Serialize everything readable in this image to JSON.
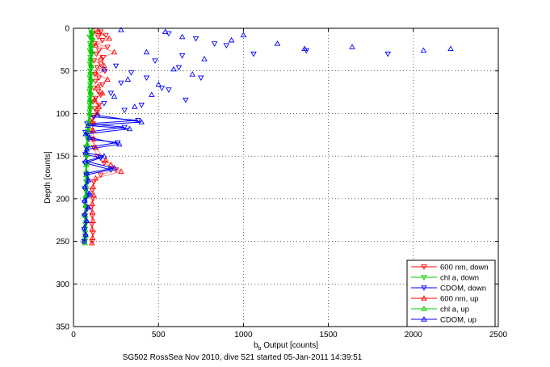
{
  "caption": "SG502 RossSea Nov 2010, dive 521 started 05-Jan-2011 14:39:51",
  "chart_data": {
    "type": "scatter",
    "xlabel": {
      "main": "b",
      "sub": "b",
      "rest": " Output [counts]"
    },
    "ylabel": "Depth [counts]",
    "xlim": [
      0,
      2500
    ],
    "ylim": [
      0,
      350
    ],
    "y_reversed": true,
    "grid": true,
    "x_ticks": [
      0,
      500,
      1000,
      1500,
      2000,
      2500
    ],
    "y_ticks": [
      0,
      50,
      100,
      150,
      200,
      250,
      300,
      350
    ],
    "legend_position": "bottom-right",
    "series": [
      {
        "name": "600 nm, down",
        "color": "#ff0000",
        "marker": "triangle-down",
        "points": [
          [
            130,
            2
          ],
          [
            160,
            4
          ],
          [
            115,
            6
          ],
          [
            190,
            8
          ],
          [
            145,
            10
          ],
          [
            170,
            14
          ],
          [
            125,
            18
          ],
          [
            200,
            22
          ],
          [
            150,
            26
          ],
          [
            135,
            30
          ],
          [
            175,
            34
          ],
          [
            120,
            38
          ],
          [
            160,
            42
          ],
          [
            140,
            46
          ],
          [
            185,
            50
          ],
          [
            125,
            54
          ],
          [
            150,
            58
          ],
          [
            130,
            62
          ],
          [
            170,
            66
          ],
          [
            120,
            70
          ],
          [
            145,
            74
          ],
          [
            160,
            78
          ],
          [
            130,
            82
          ],
          [
            115,
            86
          ],
          [
            150,
            90
          ],
          [
            125,
            94
          ],
          [
            140,
            98
          ],
          [
            120,
            102
          ],
          [
            110,
            106
          ],
          [
            115,
            112
          ],
          [
            105,
            120
          ],
          [
            112,
            130
          ],
          [
            120,
            140
          ],
          [
            140,
            150
          ],
          [
            180,
            158
          ],
          [
            250,
            166
          ],
          [
            160,
            172
          ],
          [
            120,
            180
          ],
          [
            110,
            190
          ],
          [
            115,
            200
          ],
          [
            105,
            210
          ],
          [
            110,
            220
          ],
          [
            108,
            230
          ],
          [
            115,
            240
          ],
          [
            110,
            250
          ]
        ]
      },
      {
        "name": "chl a, down",
        "color": "#00cc00",
        "marker": "triangle-down",
        "points": [
          [
            100,
            2
          ],
          [
            105,
            6
          ],
          [
            95,
            10
          ],
          [
            110,
            14
          ],
          [
            98,
            18
          ],
          [
            102,
            22
          ],
          [
            96,
            26
          ],
          [
            104,
            30
          ],
          [
            99,
            34
          ],
          [
            101,
            38
          ],
          [
            97,
            42
          ],
          [
            103,
            46
          ],
          [
            98,
            50
          ],
          [
            100,
            54
          ],
          [
            96,
            58
          ],
          [
            102,
            62
          ],
          [
            98,
            66
          ],
          [
            100,
            70
          ],
          [
            95,
            74
          ],
          [
            101,
            78
          ],
          [
            97,
            82
          ],
          [
            99,
            86
          ],
          [
            96,
            90
          ],
          [
            98,
            94
          ],
          [
            95,
            98
          ],
          [
            97,
            102
          ],
          [
            90,
            110
          ],
          [
            85,
            120
          ],
          [
            82,
            130
          ],
          [
            80,
            140
          ],
          [
            78,
            150
          ],
          [
            76,
            160
          ],
          [
            75,
            170
          ],
          [
            74,
            180
          ],
          [
            73,
            190
          ],
          [
            72,
            200
          ],
          [
            71,
            210
          ],
          [
            70,
            220
          ],
          [
            70,
            230
          ],
          [
            69,
            240
          ],
          [
            68,
            250
          ]
        ]
      },
      {
        "name": "CDOM, down",
        "color": "#0000ff",
        "marker": "triangle-down",
        "connected_from": 22,
        "points": [
          [
            560,
            6
          ],
          [
            720,
            12
          ],
          [
            830,
            18
          ],
          [
            1060,
            30
          ],
          [
            1370,
            26
          ],
          [
            1850,
            30
          ],
          [
            480,
            38
          ],
          [
            620,
            46
          ],
          [
            340,
            52
          ],
          [
            750,
            58
          ],
          [
            280,
            64
          ],
          [
            520,
            70
          ],
          [
            220,
            76
          ],
          [
            660,
            84
          ],
          [
            400,
            90
          ],
          [
            300,
            96
          ],
          [
            560,
            72
          ],
          [
            250,
            44
          ],
          [
            180,
            88
          ],
          [
            430,
            58
          ],
          [
            640,
            32
          ],
          [
            900,
            20
          ],
          [
            120,
            104
          ],
          [
            380,
            108
          ],
          [
            80,
            112
          ],
          [
            300,
            116
          ],
          [
            70,
            122
          ],
          [
            90,
            130
          ],
          [
            260,
            134
          ],
          [
            75,
            140
          ],
          [
            70,
            148
          ],
          [
            160,
            152
          ],
          [
            68,
            158
          ],
          [
            220,
            166
          ],
          [
            75,
            172
          ],
          [
            85,
            180
          ],
          [
            66,
            188
          ],
          [
            90,
            196
          ],
          [
            65,
            204
          ],
          [
            80,
            212
          ],
          [
            64,
            220
          ],
          [
            75,
            228
          ],
          [
            63,
            236
          ],
          [
            70,
            244
          ],
          [
            62,
            250
          ]
        ]
      },
      {
        "name": "600 nm, up",
        "color": "#ff0000",
        "marker": "triangle-up",
        "points": [
          [
            150,
            4
          ],
          [
            210,
            12
          ],
          [
            130,
            20
          ],
          [
            240,
            28
          ],
          [
            160,
            36
          ],
          [
            180,
            44
          ],
          [
            130,
            52
          ],
          [
            200,
            60
          ],
          [
            145,
            68
          ],
          [
            170,
            76
          ],
          [
            125,
            84
          ],
          [
            150,
            92
          ],
          [
            140,
            100
          ],
          [
            110,
            110
          ],
          [
            115,
            120
          ],
          [
            118,
            130
          ],
          [
            130,
            140
          ],
          [
            190,
            155
          ],
          [
            220,
            160
          ],
          [
            280,
            168
          ],
          [
            130,
            176
          ],
          [
            115,
            186
          ],
          [
            120,
            196
          ],
          [
            110,
            206
          ],
          [
            112,
            216
          ],
          [
            115,
            226
          ],
          [
            110,
            236
          ],
          [
            112,
            246
          ],
          [
            108,
            252
          ]
        ]
      },
      {
        "name": "chl a, up",
        "color": "#00cc00",
        "marker": "triangle-up",
        "points": [
          [
            108,
            4
          ],
          [
            112,
            12
          ],
          [
            104,
            20
          ],
          [
            110,
            28
          ],
          [
            102,
            36
          ],
          [
            106,
            44
          ],
          [
            100,
            52
          ],
          [
            104,
            60
          ],
          [
            98,
            68
          ],
          [
            102,
            76
          ],
          [
            96,
            84
          ],
          [
            100,
            92
          ],
          [
            95,
            100
          ],
          [
            88,
            112
          ],
          [
            84,
            124
          ],
          [
            80,
            136
          ],
          [
            78,
            148
          ],
          [
            76,
            160
          ],
          [
            74,
            172
          ],
          [
            73,
            184
          ],
          [
            72,
            196
          ],
          [
            71,
            208
          ],
          [
            70,
            220
          ],
          [
            69,
            232
          ],
          [
            68,
            244
          ],
          [
            67,
            252
          ]
        ]
      },
      {
        "name": "CDOM, up",
        "color": "#0000ff",
        "marker": "triangle-up",
        "connected_from": 20,
        "points": [
          [
            2220,
            24
          ],
          [
            2060,
            26
          ],
          [
            1640,
            22
          ],
          [
            1360,
            24
          ],
          [
            1000,
            8
          ],
          [
            1200,
            18
          ],
          [
            930,
            14
          ],
          [
            640,
            10
          ],
          [
            540,
            4
          ],
          [
            280,
            2
          ],
          [
            430,
            28
          ],
          [
            770,
            36
          ],
          [
            590,
            48
          ],
          [
            320,
            60
          ],
          [
            500,
            66
          ],
          [
            240,
            80
          ],
          [
            360,
            92
          ],
          [
            180,
            48
          ],
          [
            460,
            78
          ],
          [
            700,
            54
          ],
          [
            140,
            102
          ],
          [
            400,
            110
          ],
          [
            85,
            114
          ],
          [
            330,
            118
          ],
          [
            72,
            124
          ],
          [
            95,
            128
          ],
          [
            270,
            136
          ],
          [
            78,
            142
          ],
          [
            72,
            146
          ],
          [
            180,
            150
          ],
          [
            70,
            156
          ],
          [
            240,
            164
          ],
          [
            78,
            170
          ],
          [
            88,
            178
          ],
          [
            68,
            186
          ],
          [
            95,
            194
          ],
          [
            66,
            202
          ],
          [
            85,
            210
          ],
          [
            65,
            218
          ],
          [
            78,
            226
          ],
          [
            64,
            234
          ],
          [
            72,
            242
          ],
          [
            63,
            250
          ]
        ]
      }
    ]
  }
}
